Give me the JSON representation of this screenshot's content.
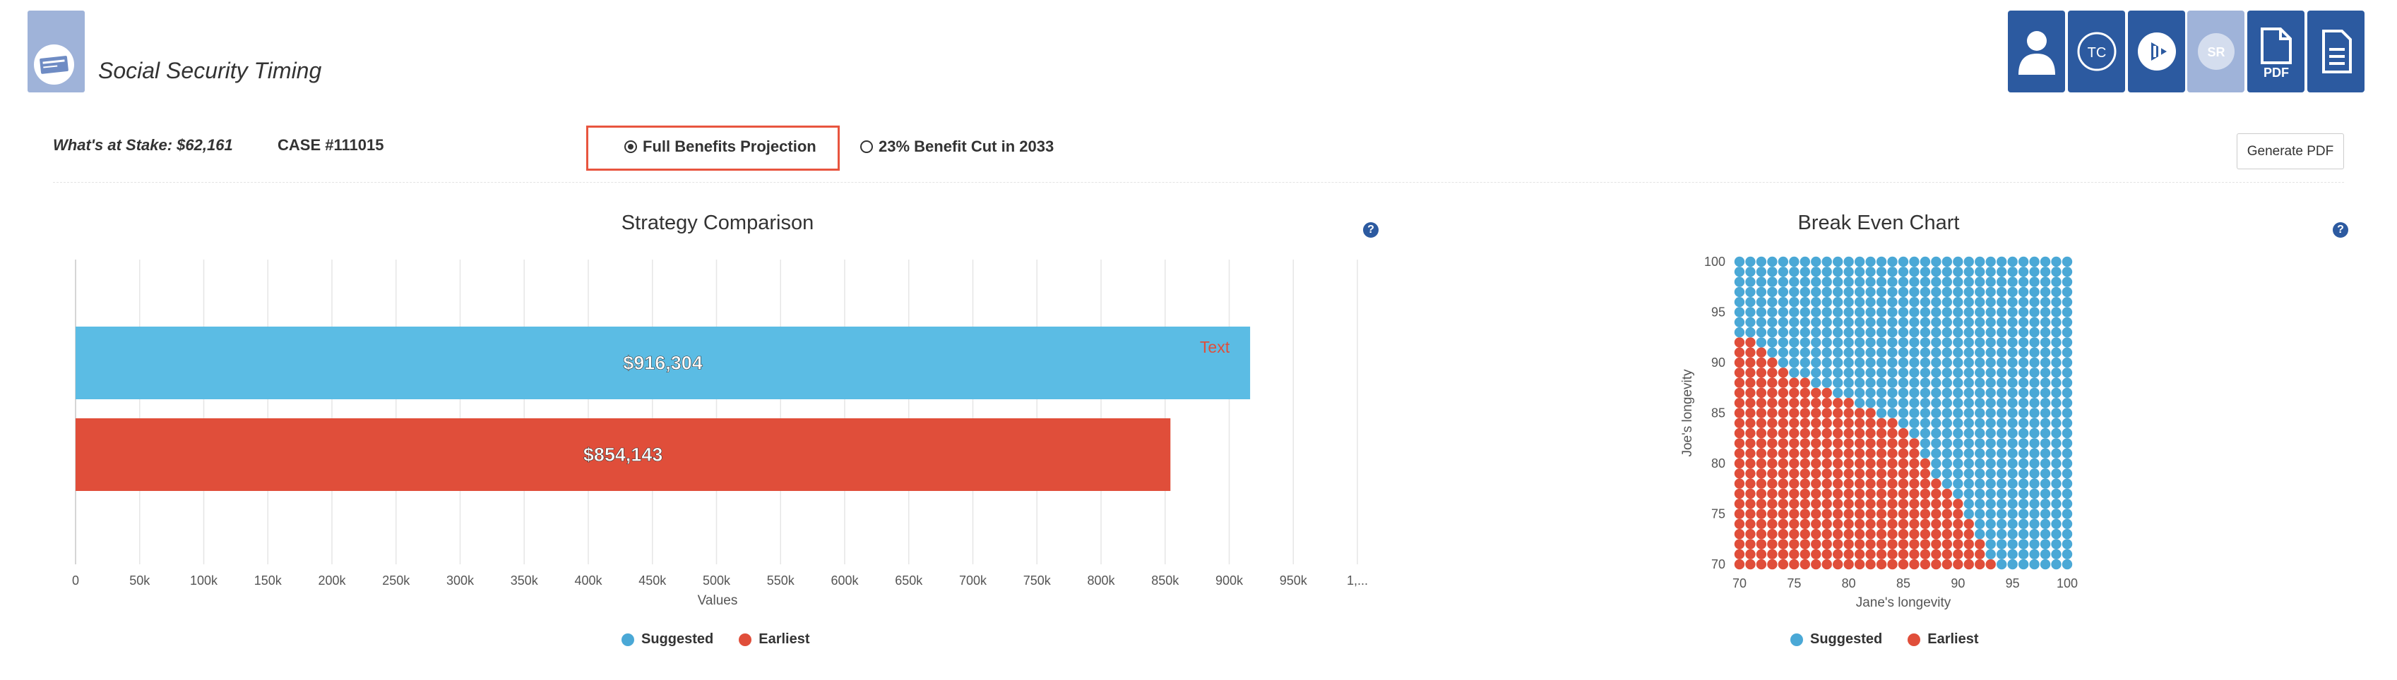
{
  "header": {
    "title": "Social Security Timing",
    "logo_icon": "social-security-card-icon",
    "nav_buttons": [
      {
        "name": "client-profile-button",
        "icon": "person-icon",
        "label": ""
      },
      {
        "name": "tc-button",
        "icon": "tc-icon",
        "label": "TC"
      },
      {
        "name": "play-button",
        "icon": "play-icon",
        "label": ""
      },
      {
        "name": "sr-button",
        "icon": "sr-icon",
        "label": "SR"
      },
      {
        "name": "pdf-button",
        "icon": "pdf-icon",
        "label": "PDF"
      },
      {
        "name": "document-button",
        "icon": "document-icon",
        "label": ""
      }
    ]
  },
  "info": {
    "stake": "What's at Stake: $62,161",
    "case": "CASE #111015",
    "options": [
      {
        "label": "Full Benefits Projection",
        "checked": true
      },
      {
        "label": "23% Benefit Cut in 2033",
        "checked": false
      }
    ],
    "generate_pdf": "Generate PDF"
  },
  "colors": {
    "suggested": "#5bbce4",
    "earliest": "#e04e3a",
    "scatter_blue": "#4aa8d6",
    "scatter_red": "#e04e3a",
    "accent": "#2c5aa0"
  },
  "strategy": {
    "help": "?",
    "annotation": "Text",
    "legend": [
      {
        "label": "Suggested",
        "color": "#4aa8d6"
      },
      {
        "label": "Earliest",
        "color": "#e04e3a"
      }
    ]
  },
  "breakeven": {
    "help": "?",
    "legend": [
      {
        "label": "Suggested",
        "color": "#4aa8d6"
      },
      {
        "label": "Earliest",
        "color": "#e04e3a"
      }
    ]
  },
  "chart_data": [
    {
      "type": "bar",
      "orientation": "horizontal",
      "title": "Strategy Comparison",
      "xlabel": "Values",
      "ylabel": "",
      "xlim": [
        0,
        1000000
      ],
      "x_ticks": [
        "0",
        "50k",
        "100k",
        "150k",
        "200k",
        "250k",
        "300k",
        "350k",
        "400k",
        "450k",
        "500k",
        "550k",
        "600k",
        "650k",
        "700k",
        "750k",
        "800k",
        "850k",
        "900k",
        "950k",
        "1,..."
      ],
      "grid": true,
      "legend_position": "bottom",
      "series": [
        {
          "name": "Suggested",
          "value": 916304,
          "label": "$916,304"
        },
        {
          "name": "Earliest",
          "value": 854143,
          "label": "$854,143"
        }
      ]
    },
    {
      "type": "scatter",
      "title": "Break Even Chart",
      "xlabel": "Jane's longevity",
      "ylabel": "Joe's longevity",
      "xlim": [
        70,
        100
      ],
      "ylim": [
        70,
        100
      ],
      "x_ticks": [
        "70",
        "75",
        "80",
        "85",
        "90",
        "95",
        "100"
      ],
      "y_ticks": [
        "70",
        "75",
        "80",
        "85",
        "90",
        "95",
        "100"
      ],
      "grid_step": 1,
      "legend_position": "bottom",
      "boundary": [
        [
          70,
          92
        ],
        [
          71,
          92
        ],
        [
          72,
          91
        ],
        [
          73,
          90
        ],
        [
          74,
          89
        ],
        [
          75,
          88
        ],
        [
          76,
          88
        ],
        [
          77,
          87
        ],
        [
          78,
          87
        ],
        [
          79,
          86
        ],
        [
          80,
          86
        ],
        [
          81,
          85
        ],
        [
          82,
          85
        ],
        [
          83,
          84
        ],
        [
          84,
          84
        ],
        [
          85,
          83
        ],
        [
          86,
          82
        ],
        [
          87,
          80
        ],
        [
          88,
          78
        ],
        [
          89,
          77
        ],
        [
          90,
          76
        ],
        [
          91,
          74
        ],
        [
          92,
          72
        ],
        [
          93,
          70
        ]
      ],
      "series": [
        {
          "name": "Suggested",
          "region": "above boundary"
        },
        {
          "name": "Earliest",
          "region": "at or below boundary"
        }
      ]
    }
  ]
}
